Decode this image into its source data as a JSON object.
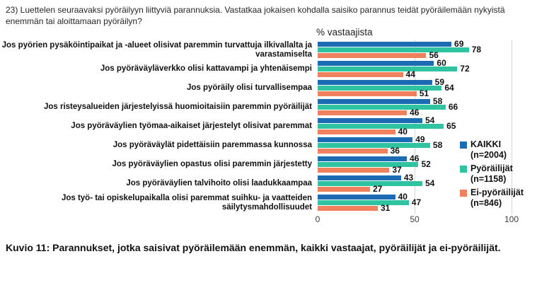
{
  "page": {
    "question": "23) Luettelen seuraavaksi pyöräilyyn liittyviä parannuksia. Vastatkaa jokaisen kohdalla saisiko parannus teidät pyöräilemään nykyistä enemmän tai aloittamaan pyöräilyn?",
    "caption": "Kuvio 11: Parannukset, jotka saisivat pyöräilemään enemmän, kaikki vastaajat, pyöräilijät ja ei-pyöräilijät."
  },
  "chart_data": {
    "type": "bar",
    "orientation": "horizontal",
    "axis_title": "% vastaajista",
    "xlim": [
      0,
      100
    ],
    "x_ticks": [
      0,
      50,
      100
    ],
    "grid": "vertical-light",
    "legend_position": "right",
    "categories": [
      "Jos pyörien pysäköintipaikat ja -alueet olisivat paremmin turvattuja ilkivallalta ja varastamiselta",
      "Jos pyöräväyläverkko olisi kattavampi ja yhtenäisempi",
      "Jos pyöräily olisi turvallisempaa",
      "Jos risteysalueiden järjestelyissä huomioitaisiin paremmin pyöräilijät",
      "Jos pyöräväylien työmaa-aikaiset järjestelyt olisivat paremmat",
      "Jos pyöräväylät pidettäisiin paremmassa kunnossa",
      "Jos pyöräväylien opastus olisi paremmin järjestetty",
      "Jos pyöräväylien talvihoito olisi laadukkaampaa",
      "Jos työ- tai opiskelupaikalla olisi paremmat suihku- ja vaatteiden säilytysmahdollisuudet"
    ],
    "series": [
      {
        "name": "KAIKKI (n=2004)",
        "legend_lines": [
          "KAIKKI",
          "(n=2004)"
        ],
        "color": "#1b6cb3",
        "values": [
          69,
          60,
          59,
          58,
          54,
          49,
          46,
          43,
          40
        ]
      },
      {
        "name": "Pyöräilijät (n=1158)",
        "legend_lines": [
          "Pyöräilijät",
          "(n=1158)"
        ],
        "color": "#30c3a1",
        "values": [
          78,
          72,
          64,
          66,
          65,
          58,
          52,
          54,
          47
        ]
      },
      {
        "name": "Ei-pyöräilijät (n=846)",
        "legend_lines": [
          "Ei-pyöräilijät",
          "(n=846)"
        ],
        "color": "#f0815f",
        "values": [
          56,
          44,
          51,
          46,
          40,
          36,
          37,
          27,
          31
        ]
      }
    ]
  }
}
